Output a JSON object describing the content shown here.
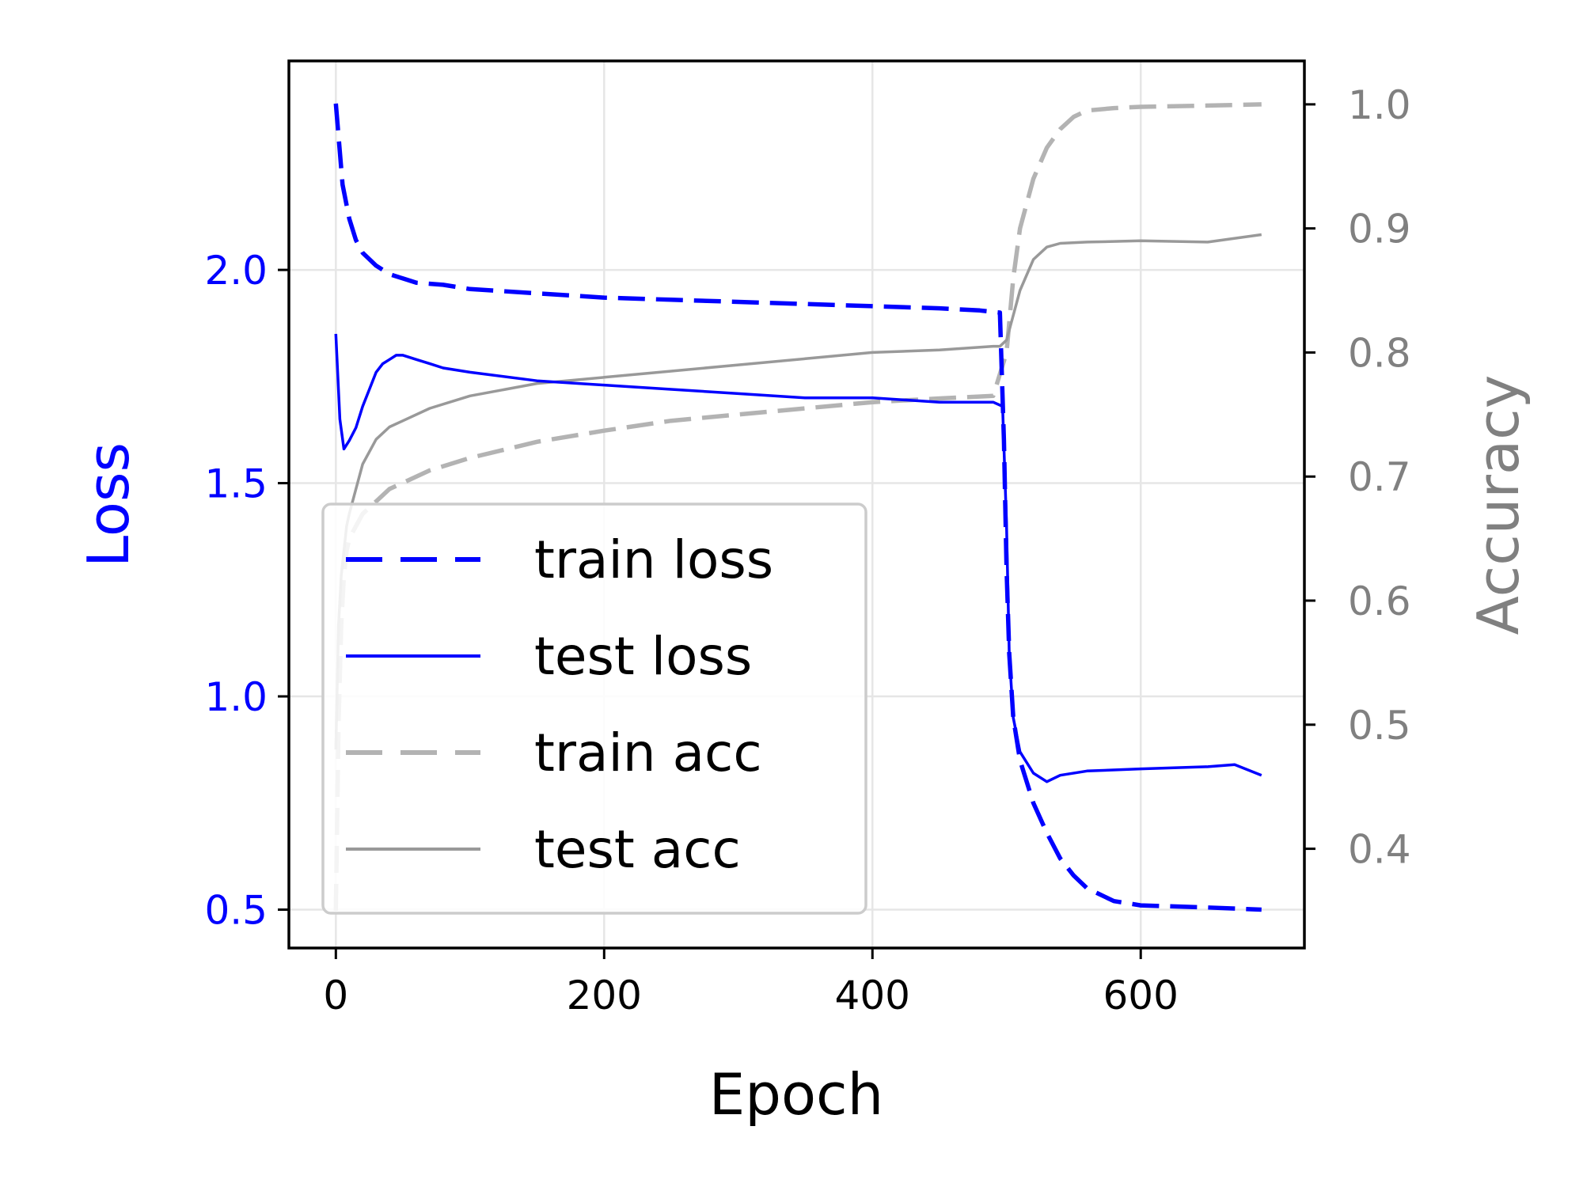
{
  "chart_data": {
    "type": "line",
    "xlabel": "Epoch",
    "ylabel_left": "Loss",
    "ylabel_right": "Accuracy",
    "xlim": [
      -35,
      722
    ],
    "ylim_left": [
      0.41,
      2.49
    ],
    "ylim_right": [
      0.32,
      1.035
    ],
    "x_ticks": [
      0,
      200,
      400,
      600
    ],
    "y_left_ticks": [
      0.5,
      1.0,
      1.5,
      2.0
    ],
    "y_right_ticks": [
      0.4,
      0.5,
      0.6,
      0.7,
      0.8,
      0.9,
      1.0
    ],
    "grid": true,
    "legend_position": "lower-left",
    "colors": {
      "train_loss": "#0000ff",
      "test_loss": "#0000ff",
      "train_acc": "#b3b3b3",
      "test_acc": "#999999",
      "left_axis": "#0000ff",
      "right_axis": "#808080"
    },
    "series": [
      {
        "name": "train loss",
        "axis": "left",
        "style": "dashed",
        "color": "#0000ff",
        "x": [
          0,
          5,
          10,
          15,
          20,
          30,
          40,
          50,
          60,
          80,
          100,
          150,
          200,
          250,
          300,
          350,
          400,
          450,
          480,
          495,
          498,
          500,
          502,
          505,
          510,
          520,
          530,
          540,
          550,
          560,
          580,
          600,
          650,
          690
        ],
        "y": [
          2.39,
          2.2,
          2.12,
          2.07,
          2.04,
          2.01,
          1.99,
          1.98,
          1.97,
          1.965,
          1.955,
          1.945,
          1.935,
          1.93,
          1.925,
          1.92,
          1.915,
          1.91,
          1.905,
          1.9,
          1.6,
          1.3,
          1.1,
          0.95,
          0.85,
          0.75,
          0.68,
          0.62,
          0.58,
          0.55,
          0.52,
          0.51,
          0.505,
          0.5
        ]
      },
      {
        "name": "test loss",
        "axis": "left",
        "style": "solid",
        "color": "#0000ff",
        "x": [
          0,
          3,
          6,
          10,
          15,
          20,
          25,
          30,
          35,
          40,
          45,
          50,
          60,
          70,
          80,
          100,
          150,
          200,
          250,
          300,
          350,
          400,
          450,
          490,
          497,
          500,
          502,
          505,
          510,
          520,
          530,
          540,
          560,
          600,
          650,
          670,
          690
        ],
        "y": [
          1.85,
          1.65,
          1.58,
          1.6,
          1.63,
          1.68,
          1.72,
          1.76,
          1.78,
          1.79,
          1.8,
          1.8,
          1.79,
          1.78,
          1.77,
          1.76,
          1.74,
          1.73,
          1.72,
          1.71,
          1.7,
          1.7,
          1.69,
          1.69,
          1.68,
          1.4,
          1.1,
          0.95,
          0.87,
          0.82,
          0.8,
          0.815,
          0.825,
          0.83,
          0.835,
          0.84,
          0.815
        ]
      },
      {
        "name": "train acc",
        "axis": "right",
        "style": "dashed",
        "color": "#b3b3b3",
        "x": [
          0,
          2,
          4,
          6,
          8,
          10,
          15,
          20,
          30,
          40,
          50,
          70,
          100,
          150,
          200,
          250,
          300,
          350,
          400,
          450,
          490,
          500,
          505,
          510,
          520,
          530,
          540,
          550,
          560,
          580,
          600,
          650,
          690
        ],
        "y": [
          0.35,
          0.5,
          0.58,
          0.62,
          0.64,
          0.65,
          0.66,
          0.67,
          0.68,
          0.69,
          0.695,
          0.705,
          0.715,
          0.728,
          0.737,
          0.745,
          0.75,
          0.755,
          0.76,
          0.763,
          0.765,
          0.8,
          0.86,
          0.9,
          0.94,
          0.965,
          0.98,
          0.99,
          0.995,
          0.997,
          0.998,
          0.999,
          1.0
        ]
      },
      {
        "name": "test acc",
        "axis": "right",
        "style": "solid",
        "color": "#999999",
        "x": [
          0,
          2,
          4,
          6,
          8,
          10,
          15,
          20,
          30,
          40,
          50,
          70,
          100,
          150,
          200,
          250,
          300,
          350,
          400,
          450,
          490,
          495,
          500,
          505,
          510,
          520,
          530,
          540,
          560,
          600,
          650,
          690
        ],
        "y": [
          0.48,
          0.58,
          0.62,
          0.64,
          0.66,
          0.67,
          0.69,
          0.71,
          0.73,
          0.74,
          0.745,
          0.755,
          0.765,
          0.775,
          0.78,
          0.785,
          0.79,
          0.795,
          0.8,
          0.802,
          0.805,
          0.805,
          0.81,
          0.83,
          0.85,
          0.875,
          0.885,
          0.888,
          0.889,
          0.89,
          0.889,
          0.895
        ]
      }
    ]
  }
}
